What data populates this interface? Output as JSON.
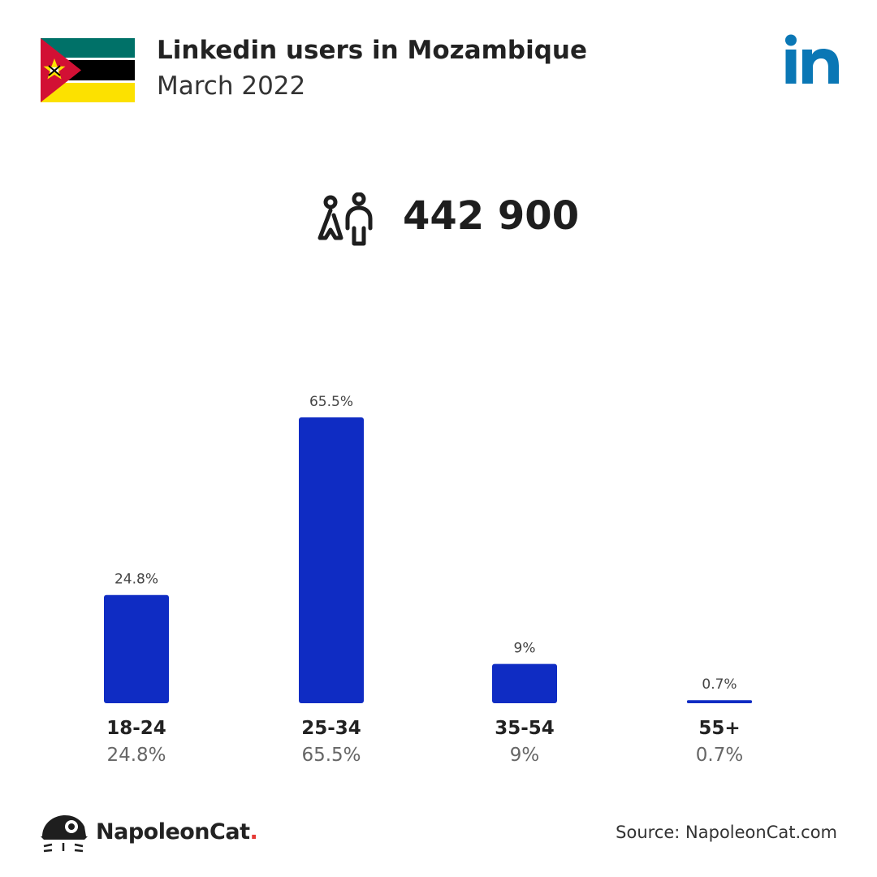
{
  "header": {
    "title": "Linkedin users in Mozambique",
    "subtitle": "March 2022"
  },
  "summary": {
    "total_users": "442 900",
    "icon": "users-icon"
  },
  "chart_data": {
    "type": "bar",
    "categories": [
      "18-24",
      "25-34",
      "35-54",
      "55+"
    ],
    "values": [
      24.8,
      65.5,
      9,
      0.7
    ],
    "value_labels": [
      "24.8%",
      "65.5%",
      "9%",
      "0.7%"
    ],
    "ylim": [
      0,
      65.5
    ],
    "grid": false,
    "bar_color": "#0f2cc3"
  },
  "footer": {
    "brand": "NapoleonCat",
    "brand_dot": ".",
    "source": "Source: NapoleonCat.com"
  },
  "colors": {
    "accent": "#0f2cc3",
    "linkedin": "#0a77b5",
    "brand_dot": "#e53935"
  }
}
